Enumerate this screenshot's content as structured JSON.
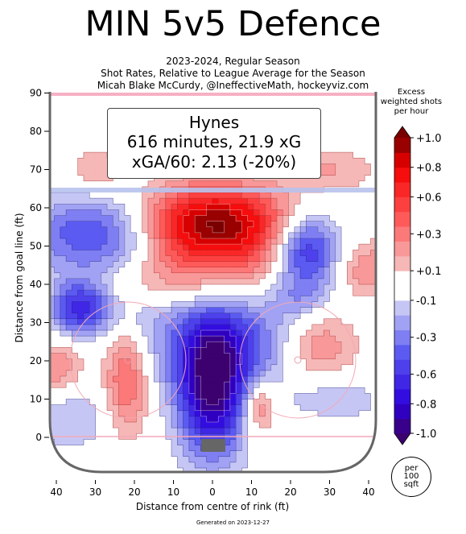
{
  "title": "MIN 5v5 Defence",
  "subtitle_lines": [
    "2023-2024, Regular Season",
    "Shot Rates, Relative to League Average for the Season",
    "Micah Blake McCurdy, @IneffectiveMath, hockeyviz.com"
  ],
  "info_box": {
    "name": "Hynes",
    "line1": "616 minutes, 21.9 xG",
    "line2": "xGA/60: 2.13 (-20%)"
  },
  "colorbar": {
    "title": "Excess\nweighted shots\nper hour",
    "tick_labels": [
      "+1.0",
      "+0.8",
      "+0.6",
      "+0.3",
      "+0.1",
      "-0.1",
      "-0.3",
      "-0.6",
      "-0.8",
      "-1.0"
    ],
    "tick_values": [
      1.0,
      0.8,
      0.6,
      0.35,
      0.1,
      -0.1,
      -0.35,
      -0.6,
      -0.8,
      -1.0
    ],
    "colors": {
      "max": "#7a0000",
      "strong_pos": "#f50000",
      "mid_pos": "#ff5a5a",
      "weak_pos": "#f6b7b7",
      "neutral": "#ffffff",
      "weak_neg": "#c6c6f5",
      "mid_neg": "#5b5bf2",
      "strong_neg": "#2c00dd",
      "min": "#3c006f"
    }
  },
  "unit_badge": "per\n100\nsqft",
  "footer": "Generated on 2023-12-27",
  "chart_data": {
    "type": "heatmap",
    "title": "MIN 5v5 Defence",
    "xlabel": "Distance from centre of rink (ft)",
    "ylabel": "Distance from goal line (ft)",
    "x_ticks": [
      40,
      30,
      20,
      10,
      0,
      10,
      20,
      30,
      40
    ],
    "y_ticks": [
      0,
      10,
      20,
      30,
      40,
      50,
      60,
      70,
      80,
      90
    ],
    "xlim": [
      -42,
      42
    ],
    "ylim": [
      -11,
      91
    ],
    "value_range": [
      -1.0,
      1.0
    ],
    "blobs": [
      {
        "x": 0,
        "y": 56,
        "sx": 14,
        "sy": 7,
        "v": 1.0
      },
      {
        "x": -10,
        "y": 44,
        "sx": 10,
        "sy": 9,
        "v": 0.3
      },
      {
        "x": 10,
        "y": 44,
        "sx": 9,
        "sy": 7,
        "v": 0.2
      },
      {
        "x": 0,
        "y": 12,
        "sx": 6,
        "sy": 12,
        "v": -0.95
      },
      {
        "x": 3,
        "y": 25,
        "sx": 14,
        "sy": 9,
        "v": -0.5
      },
      {
        "x": -27,
        "y": 53,
        "sx": 14,
        "sy": 7,
        "v": -0.6
      },
      {
        "x": 24,
        "y": 49,
        "sx": 6,
        "sy": 7,
        "v": -0.7
      },
      {
        "x": -34,
        "y": 34,
        "sx": 5,
        "sy": 5,
        "v": -0.6
      },
      {
        "x": -22,
        "y": 15,
        "sx": 4,
        "sy": 10,
        "v": 0.45
      },
      {
        "x": 27,
        "y": 24,
        "sx": 7,
        "sy": 7,
        "v": 0.35
      },
      {
        "x": -30,
        "y": 70,
        "sx": 5,
        "sy": 4,
        "v": 0.2
      },
      {
        "x": 30,
        "y": 70,
        "sx": 9,
        "sy": 4,
        "v": 0.2
      },
      {
        "x": 40,
        "y": 44,
        "sx": 6,
        "sy": 5,
        "v": 0.3
      },
      {
        "x": 12,
        "y": 8,
        "sx": 3,
        "sy": 5,
        "v": 0.4
      },
      {
        "x": -40,
        "y": 18,
        "sx": 5,
        "sy": 5,
        "v": 0.3
      },
      {
        "x": -36,
        "y": 5,
        "sx": 8,
        "sy": 6,
        "v": -0.2
      },
      {
        "x": 32,
        "y": 10,
        "sx": 8,
        "sy": 4,
        "v": -0.2
      },
      {
        "x": -20,
        "y": 32,
        "sx": 10,
        "sy": 4,
        "v": -0.15
      },
      {
        "x": 22,
        "y": 36,
        "sx": 6,
        "sy": 4,
        "v": -0.2
      }
    ]
  }
}
